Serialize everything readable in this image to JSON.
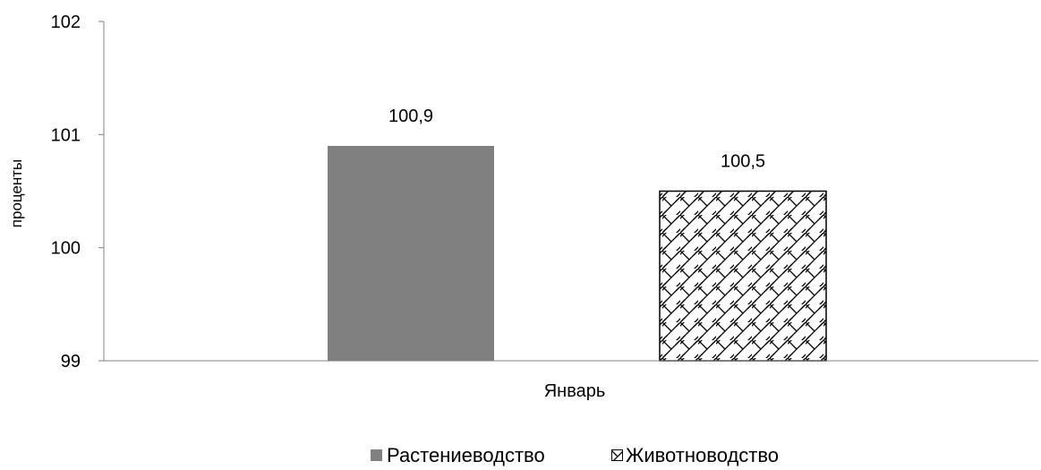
{
  "chart_data": {
    "type": "bar",
    "categories": [
      "Январь"
    ],
    "series": [
      {
        "name": "Растениеводство",
        "values": [
          100.9
        ],
        "label": "100,9",
        "color": "#808080",
        "pattern": "solid"
      },
      {
        "name": "Животноводство",
        "values": [
          100.5
        ],
        "label": "100,5",
        "color": "#000000",
        "pattern": "cross-hatch"
      }
    ],
    "ylabel": "проценты",
    "xlabel": "",
    "ylim": [
      99,
      102
    ],
    "yticks": [
      "99",
      "100",
      "101",
      "102"
    ],
    "grid": false,
    "legend": "bottom"
  }
}
